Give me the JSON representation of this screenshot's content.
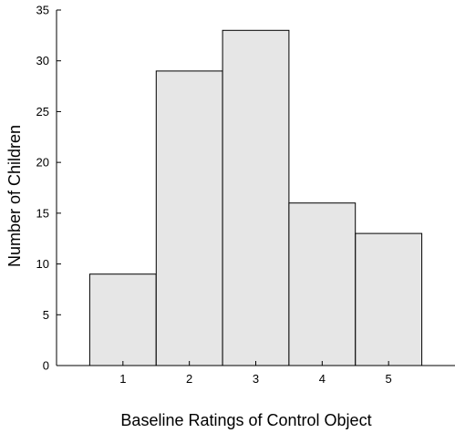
{
  "chart_data": {
    "type": "bar",
    "categories": [
      "1",
      "2",
      "3",
      "4",
      "5"
    ],
    "values": [
      9,
      29,
      33,
      16,
      13
    ],
    "xlabel": "Baseline Ratings of Control Object",
    "ylabel": "Number of Children",
    "ylim": [
      0,
      35
    ],
    "xlim": [
      0,
      6
    ],
    "yticks": [
      0,
      5,
      10,
      15,
      20,
      25,
      30,
      35
    ],
    "bar_color": "#e6e6e6",
    "edge_color": "#000000",
    "grid": false,
    "legend": "none"
  }
}
